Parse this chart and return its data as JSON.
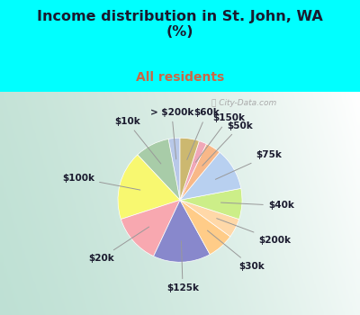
{
  "title": "Income distribution in St. John, WA\n(%)",
  "subtitle": "All residents",
  "title_color": "#1a1a2e",
  "subtitle_color": "#cc6644",
  "outer_bg": "#00ffff",
  "chart_bg_left": "#b8ddd0",
  "chart_bg_right": "#e8f5f0",
  "labels": [
    "> $200k",
    "$10k",
    "$100k",
    "$20k",
    "$125k",
    "$30k",
    "$200k",
    "$40k",
    "$75k",
    "$50k",
    "$150k",
    "$60k"
  ],
  "values": [
    3,
    9,
    18,
    13,
    15,
    7,
    5,
    8,
    11,
    4,
    2,
    5
  ],
  "colors": [
    "#b8c8e8",
    "#a8cca8",
    "#f8f870",
    "#f8a8b0",
    "#8888cc",
    "#ffcc88",
    "#ffd8a8",
    "#ccee88",
    "#b8d0f0",
    "#f8b888",
    "#f0a8b8",
    "#ccb870"
  ],
  "startangle": 90,
  "label_fontsize": 7.5,
  "watermark": "City-Data.com"
}
